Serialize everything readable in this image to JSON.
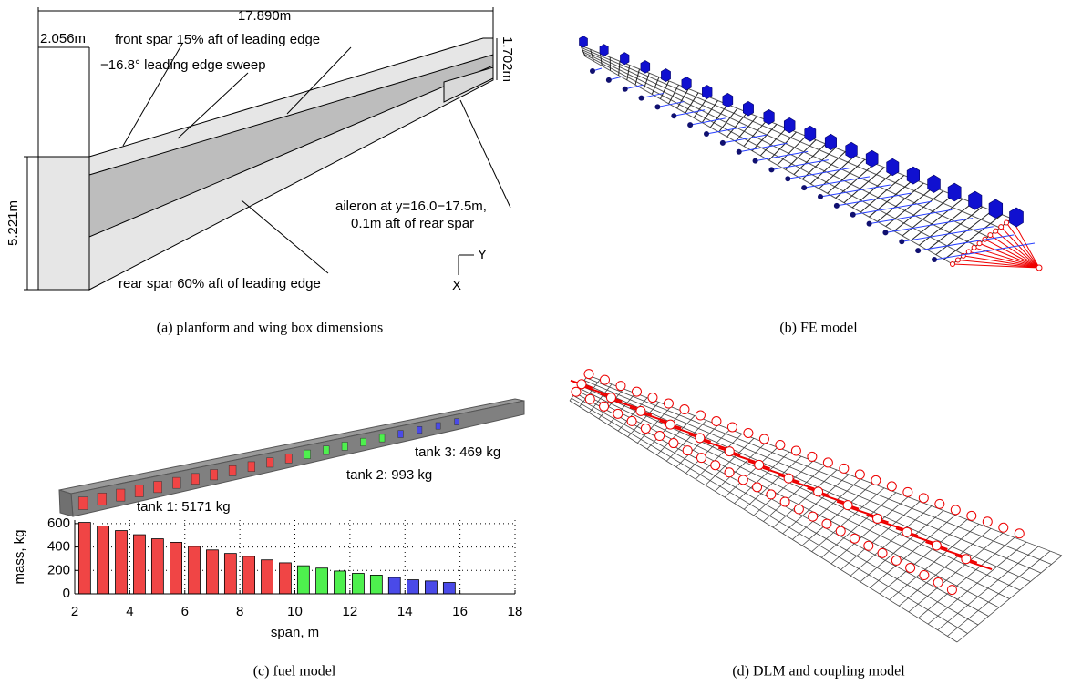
{
  "planform": {
    "caption": "(a) planform and wing box dimensions",
    "span": "17.890m",
    "inboard_width": "2.056m",
    "tip_chord": "1.702m",
    "root_chord": "5.221m",
    "front_spar": "front spar 15% aft of leading edge",
    "sweep": "−16.8° leading edge sweep",
    "aileron": [
      "aileron at y=16.0−17.5m,",
      "0.1m aft of rear spar"
    ],
    "rear_spar": "rear spar 60% aft of leading edge",
    "axis_y": "Y",
    "axis_x": "X"
  },
  "fe_model": {
    "caption": "(b) FE model"
  },
  "fuel_model": {
    "caption": "(c) fuel model",
    "tanks": [
      "tank 1: 5171 kg",
      "tank 2: 993 kg",
      "tank 3: 469 kg"
    ]
  },
  "dlm_model": {
    "caption": "(d) DLM and coupling model"
  },
  "chart_data": {
    "type": "bar",
    "xlabel": "span, m",
    "ylabel": "mass, kg",
    "xlim": [
      2,
      18
    ],
    "ylim": [
      0,
      630
    ],
    "xticks": [
      2,
      4,
      6,
      8,
      10,
      12,
      14,
      16,
      18
    ],
    "yticks": [
      0,
      200,
      400,
      600
    ],
    "grid": true,
    "series": [
      {
        "color": "#f04545",
        "x": [
          2.36,
          3.03,
          3.69,
          4.35,
          5.01,
          5.68,
          6.34,
          7.0,
          7.66,
          8.33,
          8.99,
          9.65
        ],
        "values": [
          610,
          580,
          540,
          505,
          470,
          440,
          405,
          375,
          345,
          320,
          290,
          265
        ]
      },
      {
        "color": "#4ef04e",
        "x": [
          10.31,
          10.98,
          11.64,
          12.3,
          12.96
        ],
        "values": [
          240,
          220,
          195,
          175,
          160
        ]
      },
      {
        "color": "#4a4ae8",
        "x": [
          13.62,
          14.29,
          14.95,
          15.61
        ],
        "values": [
          140,
          120,
          110,
          97
        ]
      }
    ]
  }
}
